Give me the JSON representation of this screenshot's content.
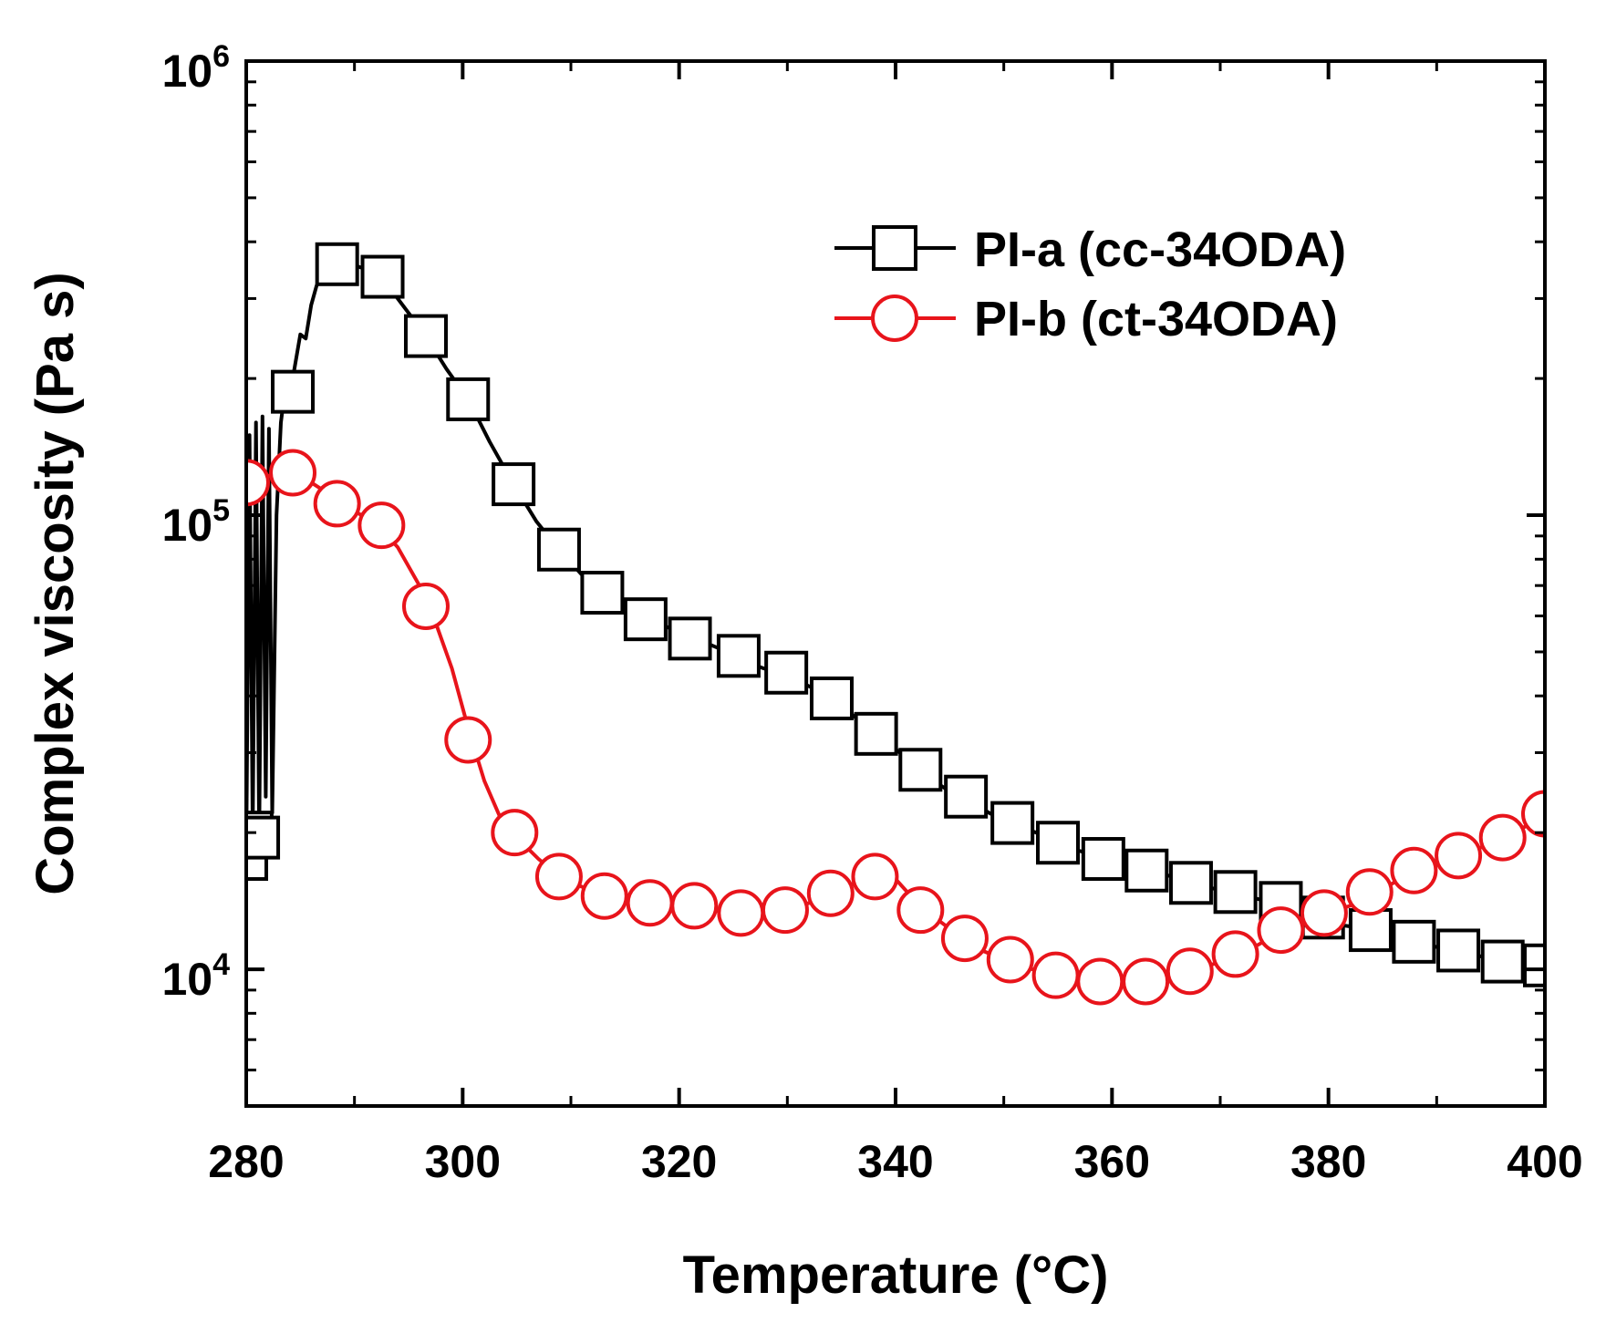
{
  "chart_data": {
    "type": "line",
    "title": "",
    "xlabel": "Temperature (°C)",
    "ylabel": "Complex viscosity (Pa s)",
    "xlim": [
      280,
      400
    ],
    "ylim": [
      5000,
      1000000
    ],
    "yscale": "log",
    "x_ticks": [
      "280",
      "300",
      "320",
      "340",
      "360",
      "380",
      "400"
    ],
    "y_ticks": [
      {
        "base": "10",
        "exp": "4",
        "value": 10000
      },
      {
        "base": "10",
        "exp": "5",
        "value": 100000
      },
      {
        "base": "10",
        "exp": "6",
        "value": 1000000
      }
    ],
    "legend_position": "top-right",
    "series": [
      {
        "name": "PI-a (cc-34ODA)",
        "color": "#000000",
        "marker": "square",
        "noise_x": [
          280.0,
          280.3,
          280.6,
          280.9,
          281.2,
          281.5,
          281.8,
          282.1,
          282.4
        ],
        "noise_y": [
          17500,
          150000,
          20000,
          160000,
          19000,
          165000,
          24000,
          155000,
          22000
        ],
        "line_x": [
          282.4,
          282.8,
          283.2,
          283.6,
          284.3,
          285.0,
          285.5,
          286.0,
          286.5,
          287.0,
          288.4,
          290.0,
          292.3,
          294.0,
          296.5,
          298.5,
          300.5,
          302.5,
          304.7,
          306.8,
          308.9,
          311.0,
          313.1,
          315.2,
          317.3,
          319.4,
          321.5,
          323.6,
          325.7,
          327.8,
          329.9,
          332.0,
          334.1,
          336.2,
          338.3,
          340.4,
          342.5,
          344.6,
          346.7,
          348.8,
          350.9,
          353.0,
          355.0,
          357.1,
          359.2,
          361.3,
          363.4,
          365.5,
          367.6,
          369.7,
          371.8,
          373.9,
          376.0,
          378.1,
          380.2,
          382.3,
          384.4,
          386.5,
          388.6,
          390.7,
          392.8,
          394.9,
          397.0,
          399.1,
          400
        ],
        "line_y": [
          22000,
          100000,
          160000,
          190000,
          200000,
          250000,
          245000,
          290000,
          320000,
          340000,
          360000,
          355000,
          340000,
          300000,
          250000,
          210000,
          180000,
          145000,
          117000,
          97000,
          84000,
          74000,
          67000,
          62000,
          59000,
          56000,
          53500,
          51000,
          48000,
          46000,
          44500,
          42000,
          40000,
          36000,
          33000,
          30000,
          27000,
          25000,
          23500,
          22000,
          20800,
          20000,
          18700,
          18200,
          17600,
          17200,
          16600,
          16000,
          15400,
          15000,
          14600,
          14200,
          14000,
          13500,
          12600,
          12400,
          12200,
          11800,
          11400,
          11100,
          10800,
          10600,
          10300,
          10200,
          10100
        ],
        "marker_x": [
          280.0,
          280.5,
          281.1,
          284.3,
          288.4,
          292.6,
          296.6,
          300.5,
          304.7,
          308.9,
          312.9,
          316.9,
          321.0,
          325.5,
          329.9,
          334.1,
          338.2,
          342.3,
          346.5,
          350.8,
          355.0,
          359.2,
          363.2,
          367.3,
          371.4,
          375.6,
          379.5,
          383.9,
          387.9,
          392.0,
          396.1,
          400.0
        ],
        "marker_y": [
          17500,
          20000,
          19500,
          187000,
          357000,
          335000,
          248000,
          180000,
          117000,
          84000,
          67500,
          59000,
          53500,
          49000,
          45000,
          39500,
          33000,
          27500,
          24000,
          21000,
          19000,
          17500,
          16500,
          15500,
          14800,
          14000,
          13000,
          12200,
          11500,
          11000,
          10400,
          10200
        ]
      },
      {
        "name": "PI-b (ct-34ODA)",
        "color": "#e8141b",
        "marker": "circle",
        "line_x": [
          280.0,
          282.0,
          284.0,
          286.0,
          288.0,
          290.0,
          292.0,
          294.0,
          296.0,
          297.5,
          299.0,
          300.5,
          302.0,
          303.5,
          305.0,
          307.0,
          309.0,
          311.0,
          313.0,
          315.0,
          317.0,
          319.0,
          321.0,
          323.0,
          325.0,
          327.0,
          329.0,
          331.0,
          333.0,
          335.0,
          337.0,
          338.5,
          340.0,
          342.0,
          344.0,
          346.0,
          348.0,
          350.0,
          352.0,
          354.0,
          356.0,
          358.0,
          360.0,
          362.0,
          364.0,
          366.0,
          368.0,
          370.0,
          372.0,
          374.0,
          376.0,
          378.0,
          380.0,
          382.0,
          384.0,
          386.0,
          388.0,
          390.0,
          392.0,
          394.0,
          396.0,
          398.0,
          400.0
        ],
        "line_y": [
          118000,
          122000,
          124000,
          118000,
          110000,
          102000,
          96000,
          85000,
          70000,
          58000,
          46000,
          34000,
          26000,
          21500,
          19500,
          17500,
          16000,
          15200,
          14600,
          14200,
          14000,
          13900,
          13800,
          13500,
          13300,
          13300,
          13400,
          13700,
          14300,
          15000,
          15800,
          16100,
          15800,
          14000,
          12800,
          11800,
          11000,
          10500,
          10100,
          9800,
          9600,
          9500,
          9400,
          9400,
          9500,
          9700,
          10000,
          10400,
          10800,
          11500,
          12200,
          12700,
          13300,
          13800,
          14500,
          15500,
          16500,
          17000,
          17800,
          18500,
          19500,
          20500,
          22000
        ],
        "marker_x": [
          280.0,
          284.3,
          288.4,
          292.5,
          296.6,
          300.5,
          304.8,
          308.9,
          313.1,
          317.3,
          321.4,
          325.7,
          329.8,
          334.0,
          338.1,
          342.3,
          346.4,
          350.6,
          354.8,
          358.9,
          363.1,
          367.2,
          371.4,
          375.6,
          379.6,
          383.8,
          387.9,
          392.0,
          396.1,
          400.0
        ],
        "marker_y": [
          118000,
          124000,
          106000,
          95000,
          63000,
          32000,
          20000,
          16000,
          14500,
          14000,
          13800,
          13300,
          13500,
          14700,
          16000,
          13500,
          11700,
          10500,
          9700,
          9400,
          9400,
          9900,
          10800,
          12200,
          13300,
          14800,
          16500,
          17800,
          19500,
          22000
        ]
      }
    ]
  }
}
